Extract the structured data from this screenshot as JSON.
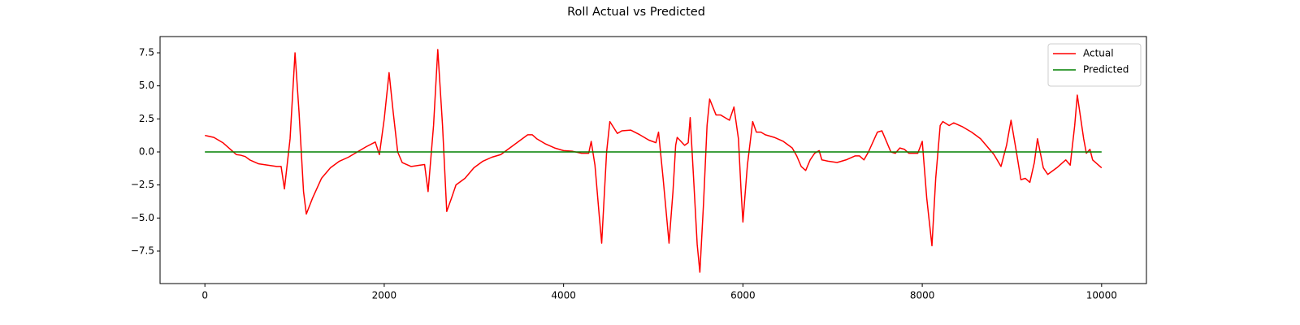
{
  "chart_data": {
    "type": "line",
    "title": "Roll Actual vs Predicted",
    "xlim": [
      -500,
      10500
    ],
    "ylim": [
      -9.96,
      8.73
    ],
    "xticks": [
      0,
      2000,
      4000,
      6000,
      8000,
      10000
    ],
    "yticks": [
      {
        "value": -7.5,
        "label": "−7.5"
      },
      {
        "value": -5,
        "label": "−5.0"
      },
      {
        "value": -2.5,
        "label": "−2.5"
      },
      {
        "value": 0,
        "label": "0.0"
      },
      {
        "value": 2.5,
        "label": "2.5"
      },
      {
        "value": 5,
        "label": "5.0"
      },
      {
        "value": 7.5,
        "label": "7.5"
      }
    ],
    "legend": "upper right",
    "series": [
      {
        "name": "Actual",
        "color": "#ff0000",
        "x": [
          0,
          100,
          200,
          300,
          350,
          400,
          450,
          500,
          600,
          700,
          800,
          850,
          887,
          950,
          1005,
          1050,
          1100,
          1131,
          1200,
          1300,
          1400,
          1500,
          1600,
          1700,
          1800,
          1900,
          1946,
          2000,
          2054,
          2100,
          2150,
          2200,
          2300,
          2400,
          2450,
          2470,
          2489,
          2550,
          2597,
          2650,
          2697,
          2750,
          2800,
          2900,
          3000,
          3100,
          3200,
          3300,
          3400,
          3500,
          3600,
          3650,
          3700,
          3800,
          3900,
          4000,
          4100,
          4200,
          4280,
          4308,
          4350,
          4400,
          4425,
          4480,
          4516,
          4600,
          4650,
          4750,
          4850,
          4950,
          5030,
          5059,
          5110,
          5176,
          5220,
          5250,
          5267,
          5350,
          5390,
          5412,
          5450,
          5490,
          5520,
          5560,
          5600,
          5629,
          5700,
          5750,
          5800,
          5850,
          5900,
          5950,
          5980,
          6000,
          6050,
          6109,
          6150,
          6200,
          6250,
          6350,
          6450,
          6550,
          6600,
          6650,
          6700,
          6750,
          6800,
          6850,
          6880,
          6950,
          7050,
          7150,
          7250,
          7300,
          7350,
          7400,
          7500,
          7550,
          7600,
          7650,
          7700,
          7750,
          7800,
          7850,
          7950,
          8000,
          8050,
          8108,
          8150,
          8200,
          8230,
          8300,
          8350,
          8450,
          8550,
          8650,
          8750,
          8800,
          8878,
          8940,
          8990,
          9050,
          9100,
          9150,
          9200,
          9250,
          9285,
          9350,
          9400,
          9500,
          9600,
          9650,
          9700,
          9729,
          9800,
          9830,
          9870,
          9900,
          10000
        ],
        "values": [
          1.25,
          1.1,
          0.7,
          0.1,
          -0.2,
          -0.25,
          -0.35,
          -0.6,
          -0.9,
          -1.0,
          -1.1,
          -1.1,
          -2.8,
          1.0,
          7.5,
          3.0,
          -3.0,
          -4.7,
          -3.5,
          -2.0,
          -1.2,
          -0.7,
          -0.4,
          0.0,
          0.4,
          0.75,
          -0.2,
          2.5,
          6.0,
          3.0,
          0.0,
          -0.8,
          -1.1,
          -1.0,
          -0.95,
          -2.0,
          -3.0,
          2.0,
          7.75,
          2.0,
          -4.5,
          -3.5,
          -2.5,
          -2.0,
          -1.2,
          -0.7,
          -0.4,
          -0.2,
          0.3,
          0.8,
          1.3,
          1.3,
          1.0,
          0.6,
          0.3,
          0.1,
          0.05,
          -0.1,
          -0.1,
          0.8,
          -1.0,
          -5.0,
          -6.9,
          0.0,
          2.3,
          1.4,
          1.6,
          1.65,
          1.3,
          0.9,
          0.7,
          1.5,
          -2.0,
          -6.9,
          -3.0,
          0.5,
          1.1,
          0.5,
          0.7,
          2.6,
          -2.0,
          -7.0,
          -9.1,
          -4.0,
          2.0,
          4.0,
          2.8,
          2.8,
          2.6,
          2.4,
          3.4,
          1.0,
          -3.0,
          -5.3,
          -1.0,
          2.3,
          1.5,
          1.5,
          1.3,
          1.1,
          0.8,
          0.3,
          -0.3,
          -1.1,
          -1.4,
          -0.6,
          -0.1,
          0.1,
          -0.6,
          -0.7,
          -0.8,
          -0.6,
          -0.3,
          -0.3,
          -0.6,
          0.0,
          1.5,
          1.6,
          0.8,
          0.0,
          -0.1,
          0.3,
          0.2,
          -0.1,
          -0.1,
          0.8,
          -3.5,
          -7.1,
          -2.0,
          2.0,
          2.3,
          2.0,
          2.2,
          1.9,
          1.5,
          1.0,
          0.2,
          -0.2,
          -1.1,
          0.5,
          2.4,
          0.0,
          -2.1,
          -2.0,
          -2.3,
          -0.8,
          1.0,
          -1.2,
          -1.7,
          -1.2,
          -0.6,
          -1.0,
          2.0,
          4.3,
          1.0,
          -0.1,
          0.2,
          -0.6,
          -1.2
        ]
      },
      {
        "name": "Predicted",
        "color": "#008000",
        "x": [
          0,
          10000
        ],
        "values": [
          0,
          0
        ]
      }
    ]
  }
}
